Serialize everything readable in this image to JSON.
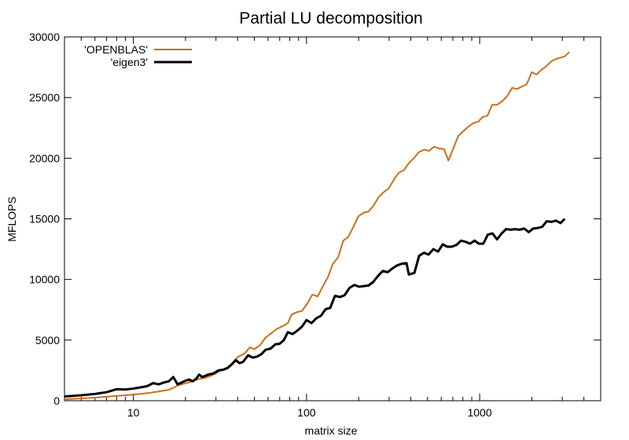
{
  "chart_data": {
    "type": "line",
    "title": "Partial LU decomposition",
    "xlabel": "matrix size",
    "ylabel": "MFLOPS",
    "xscale": "log",
    "xlim": [
      4,
      5000
    ],
    "ylim": [
      0,
      30000
    ],
    "xticks": [
      10,
      100,
      1000
    ],
    "xtick_labels": [
      "10",
      "100",
      "1000"
    ],
    "yticks": [
      0,
      5000,
      10000,
      15000,
      20000,
      25000,
      30000
    ],
    "ytick_labels": [
      "0",
      "5000",
      "10000",
      "15000",
      "20000",
      "25000",
      "30000"
    ],
    "grid": false,
    "legend_position": "top-left",
    "series": [
      {
        "name": "'OPENBLAS'",
        "color": "#c8701d",
        "points": [
          [
            4,
            120
          ],
          [
            5,
            190
          ],
          [
            6,
            260
          ],
          [
            7,
            330
          ],
          [
            8,
            400
          ],
          [
            10,
            500
          ],
          [
            12,
            620
          ],
          [
            14,
            760
          ],
          [
            16,
            900
          ],
          [
            17,
            1050
          ],
          [
            18,
            1250
          ],
          [
            20,
            1430
          ],
          [
            22,
            1600
          ],
          [
            24,
            1800
          ],
          [
            26,
            1880
          ],
          [
            28,
            2050
          ],
          [
            30,
            2250
          ],
          [
            32,
            2500
          ],
          [
            35,
            2750
          ],
          [
            38,
            3200
          ],
          [
            40,
            3600
          ],
          [
            44,
            3900
          ],
          [
            47,
            4400
          ],
          [
            50,
            4250
          ],
          [
            54,
            4600
          ],
          [
            58,
            5200
          ],
          [
            63,
            5600
          ],
          [
            68,
            5950
          ],
          [
            73,
            6150
          ],
          [
            78,
            6400
          ],
          [
            82,
            7100
          ],
          [
            88,
            7300
          ],
          [
            94,
            7400
          ],
          [
            101,
            8000
          ],
          [
            108,
            8750
          ],
          [
            116,
            8600
          ],
          [
            124,
            9400
          ],
          [
            133,
            10200
          ],
          [
            142,
            11300
          ],
          [
            152,
            11800
          ],
          [
            163,
            13200
          ],
          [
            174,
            13500
          ],
          [
            186,
            14300
          ],
          [
            199,
            15200
          ],
          [
            213,
            15500
          ],
          [
            228,
            15600
          ],
          [
            244,
            16100
          ],
          [
            261,
            16800
          ],
          [
            279,
            17200
          ],
          [
            298,
            17500
          ],
          [
            319,
            18200
          ],
          [
            341,
            18800
          ],
          [
            365,
            19000
          ],
          [
            390,
            19600
          ],
          [
            417,
            20000
          ],
          [
            446,
            20500
          ],
          [
            477,
            20700
          ],
          [
            510,
            20600
          ],
          [
            545,
            20950
          ],
          [
            583,
            20800
          ],
          [
            623,
            20750
          ],
          [
            660,
            19800
          ],
          [
            700,
            20700
          ],
          [
            750,
            21800
          ],
          [
            800,
            22200
          ],
          [
            860,
            22600
          ],
          [
            920,
            22900
          ],
          [
            980,
            23000
          ],
          [
            1040,
            23400
          ],
          [
            1110,
            23500
          ],
          [
            1180,
            24400
          ],
          [
            1260,
            24400
          ],
          [
            1350,
            24700
          ],
          [
            1440,
            25100
          ],
          [
            1540,
            25800
          ],
          [
            1640,
            25700
          ],
          [
            1750,
            25900
          ],
          [
            1870,
            26100
          ],
          [
            2000,
            27100
          ],
          [
            2130,
            26900
          ],
          [
            2280,
            27300
          ],
          [
            2430,
            27600
          ],
          [
            2600,
            28000
          ],
          [
            2780,
            28200
          ],
          [
            2960,
            28300
          ],
          [
            3100,
            28400
          ],
          [
            3300,
            28750
          ]
        ]
      },
      {
        "name": "'eigen3'",
        "color": "#000000",
        "points": [
          [
            4,
            350
          ],
          [
            5,
            450
          ],
          [
            6,
            560
          ],
          [
            7,
            700
          ],
          [
            8,
            950
          ],
          [
            9,
            920
          ],
          [
            10,
            1000
          ],
          [
            11,
            1100
          ],
          [
            12,
            1200
          ],
          [
            13,
            1450
          ],
          [
            14,
            1350
          ],
          [
            15,
            1500
          ],
          [
            16,
            1600
          ],
          [
            17,
            1950
          ],
          [
            18,
            1350
          ],
          [
            19,
            1500
          ],
          [
            20,
            1650
          ],
          [
            21,
            1750
          ],
          [
            22,
            1600
          ],
          [
            23,
            1800
          ],
          [
            24,
            2150
          ],
          [
            25,
            1950
          ],
          [
            27,
            2150
          ],
          [
            29,
            2250
          ],
          [
            31,
            2500
          ],
          [
            33,
            2550
          ],
          [
            35,
            2700
          ],
          [
            37,
            3000
          ],
          [
            39,
            3350
          ],
          [
            41,
            3100
          ],
          [
            43,
            3200
          ],
          [
            46,
            3750
          ],
          [
            49,
            3550
          ],
          [
            52,
            3650
          ],
          [
            55,
            3850
          ],
          [
            58,
            4200
          ],
          [
            62,
            4300
          ],
          [
            66,
            4650
          ],
          [
            70,
            4700
          ],
          [
            74,
            5000
          ],
          [
            78,
            5650
          ],
          [
            83,
            5500
          ],
          [
            88,
            5750
          ],
          [
            94,
            6100
          ],
          [
            100,
            6650
          ],
          [
            107,
            6400
          ],
          [
            114,
            6800
          ],
          [
            121,
            7000
          ],
          [
            129,
            7550
          ],
          [
            137,
            7650
          ],
          [
            146,
            8650
          ],
          [
            156,
            8550
          ],
          [
            166,
            8700
          ],
          [
            177,
            9300
          ],
          [
            189,
            9550
          ],
          [
            201,
            9400
          ],
          [
            214,
            9450
          ],
          [
            228,
            9500
          ],
          [
            243,
            9800
          ],
          [
            259,
            10300
          ],
          [
            276,
            10700
          ],
          [
            294,
            10600
          ],
          [
            313,
            10900
          ],
          [
            333,
            11150
          ],
          [
            355,
            11300
          ],
          [
            378,
            11350
          ],
          [
            390,
            10400
          ],
          [
            420,
            10550
          ],
          [
            447,
            11950
          ],
          [
            476,
            12200
          ],
          [
            507,
            12050
          ],
          [
            540,
            12500
          ],
          [
            575,
            12300
          ],
          [
            612,
            12900
          ],
          [
            650,
            12700
          ],
          [
            690,
            12700
          ],
          [
            735,
            12850
          ],
          [
            780,
            13200
          ],
          [
            830,
            13100
          ],
          [
            880,
            12950
          ],
          [
            935,
            13200
          ],
          [
            990,
            12950
          ],
          [
            1050,
            12950
          ],
          [
            1115,
            13700
          ],
          [
            1185,
            13800
          ],
          [
            1260,
            13300
          ],
          [
            1340,
            13800
          ],
          [
            1420,
            14150
          ],
          [
            1510,
            14100
          ],
          [
            1600,
            14150
          ],
          [
            1700,
            14100
          ],
          [
            1810,
            14200
          ],
          [
            1920,
            13900
          ],
          [
            2040,
            14200
          ],
          [
            2170,
            14250
          ],
          [
            2300,
            14350
          ],
          [
            2440,
            14800
          ],
          [
            2600,
            14750
          ],
          [
            2760,
            14850
          ],
          [
            2930,
            14650
          ],
          [
            3100,
            15000
          ]
        ]
      }
    ]
  }
}
